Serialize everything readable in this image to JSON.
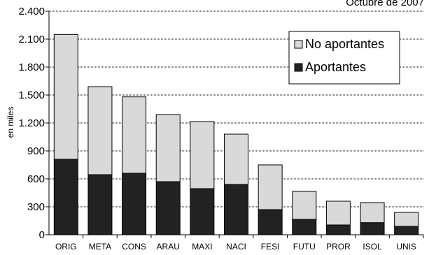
{
  "chart_data": {
    "type": "bar",
    "stacked": true,
    "title": "Octubre de 2007",
    "xlabel": "",
    "ylabel": "en miles",
    "ylim": [
      0,
      2400
    ],
    "yticks": [
      0,
      300,
      600,
      900,
      1200,
      1500,
      1800,
      2100,
      2400
    ],
    "ytick_labels": [
      "0",
      "300",
      "600",
      "900",
      "1.200",
      "1.500",
      "1.800",
      "2.100",
      "2.400"
    ],
    "grid": true,
    "legend_position": "top-right",
    "categories": [
      "ORIG",
      "META",
      "CONS",
      "ARAU",
      "MAXI",
      "NACI",
      "FESI",
      "FUTU",
      "PROR",
      "ISOL",
      "UNIS"
    ],
    "series": [
      {
        "name": "Aportantes",
        "color": "#222222",
        "values": [
          810,
          645,
          660,
          570,
          495,
          540,
          270,
          165,
          105,
          130,
          90
        ]
      },
      {
        "name": "No aportantes",
        "color": "#d9d9d9",
        "values": [
          1340,
          945,
          820,
          720,
          720,
          540,
          480,
          300,
          255,
          215,
          150
        ]
      }
    ]
  }
}
